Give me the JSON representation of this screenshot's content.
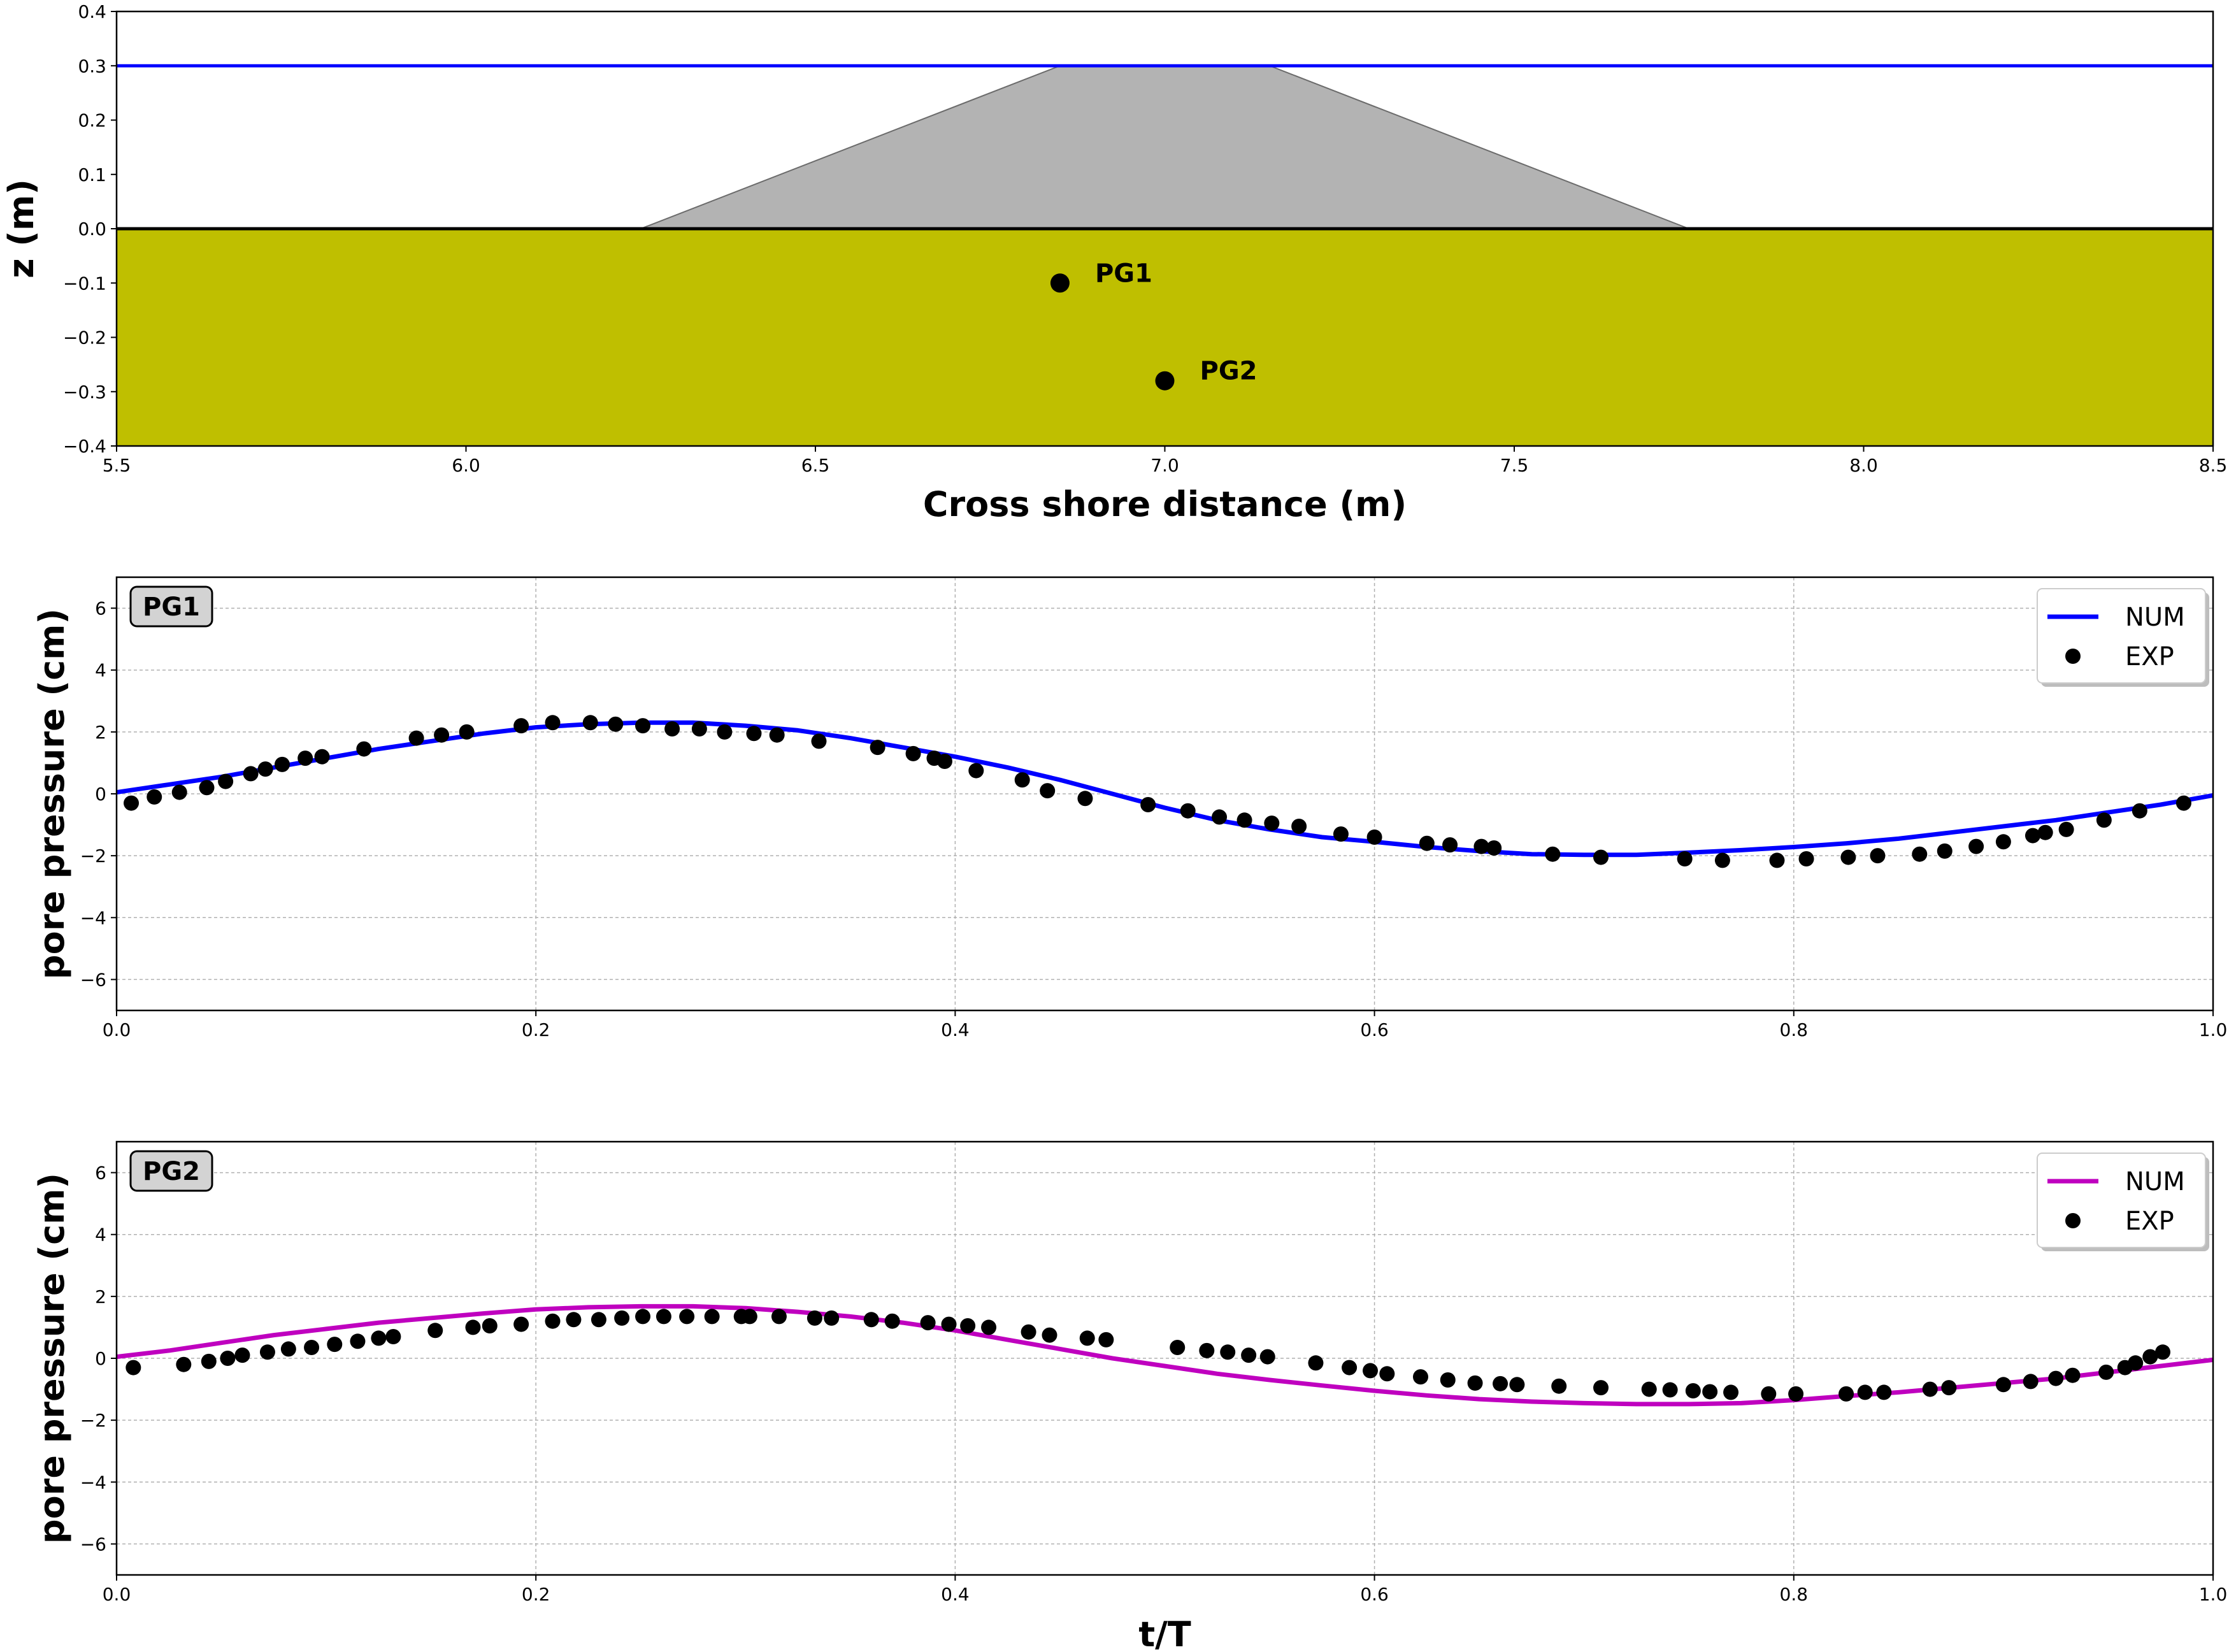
{
  "colors": {
    "water_line": "#0000ff",
    "structure_fill": "#b3b3b3",
    "structure_edge": "#6b6b6b",
    "seabed_fill": "#bfbf00",
    "seabed_line": "#000000",
    "gauge": "#000000",
    "pg1_num": "#0000ff",
    "pg2_num": "#bf00bf",
    "exp": "#000000",
    "grid": "#b0b0b0"
  },
  "chart_data": [
    {
      "type": "area",
      "name": "profile",
      "xlabel": "Cross shore distance (m)",
      "ylabel": "z (m)",
      "xlim": [
        5.5,
        8.5
      ],
      "ylim": [
        -0.4,
        0.4
      ],
      "xticks": [
        "5.5",
        "6.0",
        "6.5",
        "7.0",
        "7.5",
        "8.0",
        "8.5"
      ],
      "yticks": [
        "−0.4",
        "−0.3",
        "−0.2",
        "−0.1",
        "0.0",
        "0.1",
        "0.2",
        "0.3",
        "0.4"
      ],
      "grid": false,
      "water_level": 0.3,
      "seabed_level": 0.0,
      "structure": {
        "x": [
          6.25,
          6.85,
          7.15,
          7.75
        ],
        "z": [
          0.0,
          0.3,
          0.3,
          0.0
        ]
      },
      "gauges": [
        {
          "label": "PG1",
          "x": 6.85,
          "z": -0.1
        },
        {
          "label": "PG2",
          "x": 7.0,
          "z": -0.28
        }
      ]
    },
    {
      "type": "line",
      "name": "PG1",
      "tag": "PG1",
      "xlabel": "",
      "ylabel": "pore pressure (cm)",
      "xlim": [
        0,
        1
      ],
      "ylim": [
        -7,
        7
      ],
      "xticks": [
        "0.0",
        "0.2",
        "0.4",
        "0.6",
        "0.8",
        "1.0"
      ],
      "yticks": [
        "−6",
        "−4",
        "−2",
        "0",
        "2",
        "4",
        "6"
      ],
      "grid": true,
      "legend_position": "top-right",
      "series": [
        {
          "name": "NUM",
          "kind": "line",
          "x": [
            0,
            0.025,
            0.05,
            0.075,
            0.1,
            0.125,
            0.15,
            0.175,
            0.2,
            0.225,
            0.25,
            0.275,
            0.3,
            0.325,
            0.35,
            0.375,
            0.4,
            0.425,
            0.45,
            0.475,
            0.5,
            0.525,
            0.55,
            0.575,
            0.6,
            0.625,
            0.65,
            0.675,
            0.7,
            0.725,
            0.75,
            0.775,
            0.8,
            0.825,
            0.85,
            0.875,
            0.9,
            0.925,
            0.95,
            0.975,
            1.0
          ],
          "y": [
            0.05,
            0.3,
            0.55,
            0.85,
            1.15,
            1.45,
            1.7,
            1.95,
            2.15,
            2.25,
            2.3,
            2.3,
            2.2,
            2.05,
            1.8,
            1.5,
            1.2,
            0.85,
            0.45,
            0.0,
            -0.45,
            -0.85,
            -1.15,
            -1.4,
            -1.55,
            -1.72,
            -1.85,
            -1.95,
            -1.97,
            -1.97,
            -1.9,
            -1.82,
            -1.72,
            -1.6,
            -1.45,
            -1.25,
            -1.05,
            -0.85,
            -0.6,
            -0.35,
            -0.05
          ]
        },
        {
          "name": "EXP",
          "kind": "scatter",
          "x": [
            0.007,
            0.018,
            0.03,
            0.043,
            0.052,
            0.064,
            0.071,
            0.079,
            0.09,
            0.098,
            0.118,
            0.143,
            0.155,
            0.167,
            0.193,
            0.208,
            0.226,
            0.238,
            0.251,
            0.265,
            0.278,
            0.29,
            0.304,
            0.315,
            0.335,
            0.363,
            0.38,
            0.39,
            0.395,
            0.41,
            0.432,
            0.444,
            0.462,
            0.492,
            0.511,
            0.526,
            0.538,
            0.551,
            0.564,
            0.584,
            0.6,
            0.625,
            0.636,
            0.651,
            0.657,
            0.685,
            0.708,
            0.748,
            0.766,
            0.792,
            0.806,
            0.826,
            0.84,
            0.86,
            0.872,
            0.887,
            0.9,
            0.914,
            0.92,
            0.93,
            0.948,
            0.965,
            0.986
          ],
          "y": [
            -0.3,
            -0.1,
            0.05,
            0.2,
            0.4,
            0.65,
            0.8,
            0.95,
            1.15,
            1.2,
            1.45,
            1.8,
            1.9,
            2.0,
            2.2,
            2.3,
            2.3,
            2.25,
            2.2,
            2.1,
            2.1,
            2.0,
            1.95,
            1.9,
            1.7,
            1.5,
            1.3,
            1.15,
            1.05,
            0.75,
            0.45,
            0.1,
            -0.15,
            -0.35,
            -0.55,
            -0.75,
            -0.85,
            -0.95,
            -1.05,
            -1.3,
            -1.4,
            -1.6,
            -1.65,
            -1.7,
            -1.75,
            -1.95,
            -2.05,
            -2.1,
            -2.15,
            -2.15,
            -2.1,
            -2.05,
            -2.0,
            -1.95,
            -1.85,
            -1.7,
            -1.55,
            -1.35,
            -1.25,
            -1.15,
            -0.85,
            -0.55,
            -0.3
          ]
        }
      ]
    },
    {
      "type": "line",
      "name": "PG2",
      "tag": "PG2",
      "xlabel": "t/T",
      "ylabel": "pore pressure (cm)",
      "xlim": [
        0,
        1
      ],
      "ylim": [
        -7,
        7
      ],
      "xticks": [
        "0.0",
        "0.2",
        "0.4",
        "0.6",
        "0.8",
        "1.0"
      ],
      "yticks": [
        "−6",
        "−4",
        "−2",
        "0",
        "2",
        "4",
        "6"
      ],
      "grid": true,
      "legend_position": "top-right",
      "series": [
        {
          "name": "NUM",
          "kind": "line",
          "x": [
            0,
            0.025,
            0.05,
            0.075,
            0.1,
            0.125,
            0.15,
            0.175,
            0.2,
            0.225,
            0.25,
            0.275,
            0.3,
            0.325,
            0.35,
            0.375,
            0.4,
            0.425,
            0.45,
            0.475,
            0.5,
            0.525,
            0.55,
            0.575,
            0.6,
            0.625,
            0.65,
            0.675,
            0.7,
            0.725,
            0.75,
            0.775,
            0.8,
            0.825,
            0.85,
            0.875,
            0.9,
            0.925,
            0.95,
            0.975,
            1.0
          ],
          "y": [
            0.05,
            0.25,
            0.5,
            0.75,
            0.95,
            1.15,
            1.3,
            1.45,
            1.58,
            1.65,
            1.68,
            1.68,
            1.62,
            1.5,
            1.35,
            1.15,
            0.9,
            0.6,
            0.3,
            0.0,
            -0.25,
            -0.5,
            -0.7,
            -0.88,
            -1.05,
            -1.2,
            -1.32,
            -1.4,
            -1.45,
            -1.48,
            -1.48,
            -1.45,
            -1.35,
            -1.22,
            -1.1,
            -0.95,
            -0.8,
            -0.65,
            -0.45,
            -0.25,
            -0.05
          ]
        },
        {
          "name": "EXP",
          "kind": "scatter",
          "x": [
            0.008,
            0.032,
            0.044,
            0.053,
            0.06,
            0.072,
            0.082,
            0.093,
            0.104,
            0.115,
            0.125,
            0.132,
            0.152,
            0.17,
            0.178,
            0.193,
            0.208,
            0.218,
            0.23,
            0.241,
            0.251,
            0.261,
            0.272,
            0.284,
            0.298,
            0.302,
            0.316,
            0.333,
            0.341,
            0.36,
            0.37,
            0.387,
            0.397,
            0.406,
            0.416,
            0.435,
            0.445,
            0.463,
            0.472,
            0.506,
            0.52,
            0.53,
            0.54,
            0.549,
            0.572,
            0.588,
            0.598,
            0.606,
            0.622,
            0.635,
            0.648,
            0.66,
            0.668,
            0.688,
            0.708,
            0.731,
            0.741,
            0.752,
            0.76,
            0.77,
            0.788,
            0.801,
            0.825,
            0.834,
            0.843,
            0.865,
            0.874,
            0.9,
            0.913,
            0.925,
            0.933,
            0.949,
            0.958,
            0.963,
            0.97,
            0.976
          ],
          "y": [
            -0.3,
            -0.2,
            -0.1,
            0.0,
            0.1,
            0.2,
            0.3,
            0.35,
            0.45,
            0.55,
            0.65,
            0.7,
            0.9,
            1.0,
            1.05,
            1.1,
            1.2,
            1.25,
            1.25,
            1.3,
            1.35,
            1.35,
            1.35,
            1.35,
            1.35,
            1.35,
            1.35,
            1.3,
            1.3,
            1.25,
            1.2,
            1.15,
            1.1,
            1.05,
            1.0,
            0.85,
            0.75,
            0.65,
            0.6,
            0.35,
            0.25,
            0.2,
            0.1,
            0.05,
            -0.15,
            -0.3,
            -0.4,
            -0.5,
            -0.6,
            -0.7,
            -0.8,
            -0.82,
            -0.85,
            -0.9,
            -0.95,
            -1.0,
            -1.02,
            -1.05,
            -1.08,
            -1.1,
            -1.15,
            -1.15,
            -1.15,
            -1.1,
            -1.1,
            -1.0,
            -0.95,
            -0.85,
            -0.75,
            -0.65,
            -0.55,
            -0.45,
            -0.3,
            -0.15,
            0.05,
            0.2
          ]
        }
      ]
    }
  ]
}
